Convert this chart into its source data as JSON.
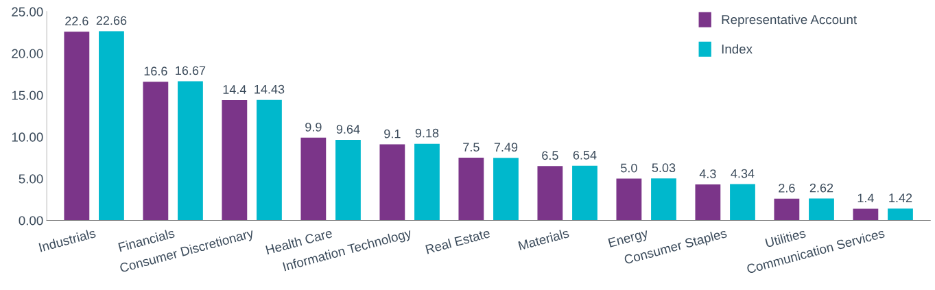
{
  "chart_data": {
    "type": "bar",
    "categories": [
      "Industrials",
      "Financials",
      "Consumer Discretionary",
      "Health Care",
      "Information Technology",
      "Real Estate",
      "Materials",
      "Energy",
      "Consumer Staples",
      "Utilities",
      "Communication Services"
    ],
    "series": [
      {
        "name": "Representative Account",
        "color": "#7b3589",
        "values": [
          22.6,
          16.6,
          14.4,
          9.9,
          9.1,
          7.5,
          6.5,
          5.0,
          4.3,
          2.6,
          1.4
        ],
        "value_labels": [
          "22.6",
          "16.6",
          "14.4",
          "9.9",
          "9.1",
          "7.5",
          "6.5",
          "5.0",
          "4.3",
          "2.6",
          "1.4"
        ]
      },
      {
        "name": "Index",
        "color": "#00b8cc",
        "values": [
          22.66,
          16.67,
          14.43,
          9.64,
          9.18,
          7.49,
          6.54,
          5.03,
          4.34,
          2.62,
          1.42
        ],
        "value_labels": [
          "22.66",
          "16.67",
          "14.43",
          "9.64",
          "9.18",
          "7.49",
          "6.54",
          "5.03",
          "4.34",
          "2.62",
          "1.42"
        ]
      }
    ],
    "ylim": [
      0,
      25
    ],
    "yticks": [
      {
        "value": 0,
        "label": "0.00"
      },
      {
        "value": 5,
        "label": "5.00"
      },
      {
        "value": 10,
        "label": "10.00"
      },
      {
        "value": 15,
        "label": "15.00"
      },
      {
        "value": 20,
        "label": "20.00"
      },
      {
        "value": 25,
        "label": "25.00"
      }
    ],
    "legend": "top right",
    "grid": false
  }
}
